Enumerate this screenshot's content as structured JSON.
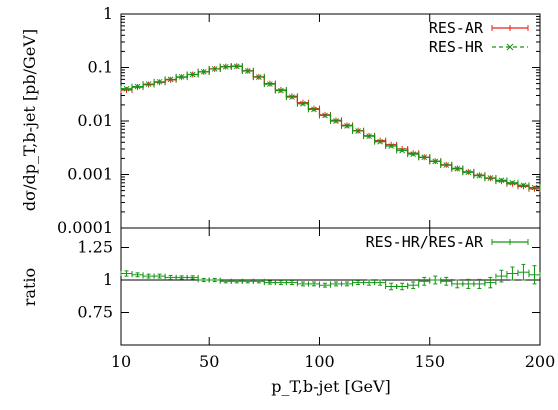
{
  "chart_data": [
    {
      "type": "line",
      "panel": "main",
      "ylabel": "dσ/dp_T,b-jet [pb/GeV]",
      "yscale": "log",
      "ylim": [
        0.0001,
        1
      ],
      "xlim": [
        10,
        200
      ],
      "yticks": [
        {
          "value": 1,
          "label": "1"
        },
        {
          "value": 0.1,
          "label": "0.1"
        },
        {
          "value": 0.01,
          "label": "0.01"
        },
        {
          "value": 0.001,
          "label": "0.001"
        },
        {
          "value": 0.0001,
          "label": "0.0001"
        }
      ],
      "legend_position": "top-right",
      "grid": false,
      "bin_width": 5,
      "series": [
        {
          "name": "RES-AR",
          "color": "#e8241c",
          "marker": "plus",
          "x": [
            12.5,
            17.5,
            22.5,
            27.5,
            32.5,
            37.5,
            42.5,
            47.5,
            52.5,
            57.5,
            62.5,
            67.5,
            72.5,
            77.5,
            82.5,
            87.5,
            92.5,
            97.5,
            102.5,
            107.5,
            112.5,
            117.5,
            122.5,
            127.5,
            132.5,
            137.5,
            142.5,
            147.5,
            152.5,
            157.5,
            162.5,
            167.5,
            172.5,
            177.5,
            182.5,
            187.5,
            192.5,
            197.5
          ],
          "y": [
            0.038,
            0.043,
            0.048,
            0.053,
            0.059,
            0.066,
            0.074,
            0.083,
            0.094,
            0.104,
            0.106,
            0.087,
            0.067,
            0.05,
            0.038,
            0.029,
            0.022,
            0.017,
            0.013,
            0.0103,
            0.0083,
            0.0066,
            0.0053,
            0.0043,
            0.0036,
            0.003,
            0.0025,
            0.0021,
            0.00177,
            0.00152,
            0.0013,
            0.00112,
            0.00097,
            0.00085,
            0.00075,
            0.00067,
            0.0006,
            0.00054
          ]
        },
        {
          "name": "RES-HR",
          "color": "#149614",
          "marker": "cross",
          "x": [
            12.5,
            17.5,
            22.5,
            27.5,
            32.5,
            37.5,
            42.5,
            47.5,
            52.5,
            57.5,
            62.5,
            67.5,
            72.5,
            77.5,
            82.5,
            87.5,
            92.5,
            97.5,
            102.5,
            107.5,
            112.5,
            117.5,
            122.5,
            127.5,
            132.5,
            137.5,
            142.5,
            147.5,
            152.5,
            157.5,
            162.5,
            167.5,
            172.5,
            177.5,
            182.5,
            187.5,
            192.5,
            197.5
          ],
          "y": [
            0.04,
            0.044,
            0.049,
            0.054,
            0.06,
            0.067,
            0.074,
            0.083,
            0.094,
            0.103,
            0.105,
            0.086,
            0.066,
            0.049,
            0.037,
            0.028,
            0.021,
            0.0165,
            0.0127,
            0.01,
            0.0081,
            0.0065,
            0.0052,
            0.0041,
            0.0034,
            0.0028,
            0.0024,
            0.0021,
            0.00176,
            0.0015,
            0.00128,
            0.0011,
            0.00095,
            0.00086,
            0.00078,
            0.0007,
            0.00063,
            0.00057
          ]
        }
      ]
    },
    {
      "type": "scatter",
      "panel": "ratio",
      "xlabel": "p_T,b-jet [GeV]",
      "ylabel": "ratio",
      "xlim": [
        10,
        200
      ],
      "ylim": [
        0.5,
        1.4
      ],
      "reference_line": 1,
      "xticks": [
        {
          "value": 10,
          "label": "10"
        },
        {
          "value": 50,
          "label": "50"
        },
        {
          "value": 100,
          "label": "100"
        },
        {
          "value": 150,
          "label": "150"
        },
        {
          "value": 200,
          "label": "200"
        }
      ],
      "yticks": [
        {
          "value": 1.25,
          "label": "1.25"
        },
        {
          "value": 1,
          "label": "1"
        },
        {
          "value": 0.75,
          "label": "0.75"
        }
      ],
      "legend_position": "top-right",
      "bin_width": 5,
      "series": [
        {
          "name": "RES-HR/RES-AR",
          "color": "#149614",
          "marker": "plus",
          "x": [
            12.5,
            17.5,
            22.5,
            27.5,
            32.5,
            37.5,
            42.5,
            47.5,
            52.5,
            57.5,
            62.5,
            67.5,
            72.5,
            77.5,
            82.5,
            87.5,
            92.5,
            97.5,
            102.5,
            107.5,
            112.5,
            117.5,
            122.5,
            127.5,
            132.5,
            137.5,
            142.5,
            147.5,
            152.5,
            157.5,
            162.5,
            167.5,
            172.5,
            177.5,
            182.5,
            187.5,
            192.5,
            197.5
          ],
          "y": [
            1.05,
            1.04,
            1.03,
            1.03,
            1.02,
            1.02,
            1.02,
            1.0,
            1.0,
            0.99,
            0.99,
            0.99,
            0.99,
            0.98,
            0.98,
            0.98,
            0.97,
            0.97,
            0.96,
            0.97,
            0.97,
            0.98,
            0.98,
            0.98,
            0.95,
            0.95,
            0.96,
            0.99,
            1.0,
            0.99,
            0.97,
            0.97,
            0.97,
            0.98,
            1.03,
            1.05,
            1.06,
            1.04
          ],
          "yerr": [
            0.02,
            0.015,
            0.015,
            0.015,
            0.015,
            0.012,
            0.012,
            0.012,
            0.012,
            0.012,
            0.012,
            0.012,
            0.012,
            0.012,
            0.015,
            0.015,
            0.015,
            0.015,
            0.015,
            0.015,
            0.015,
            0.015,
            0.02,
            0.02,
            0.025,
            0.025,
            0.025,
            0.03,
            0.03,
            0.03,
            0.03,
            0.035,
            0.035,
            0.04,
            0.045,
            0.05,
            0.06,
            0.07
          ]
        }
      ]
    }
  ]
}
